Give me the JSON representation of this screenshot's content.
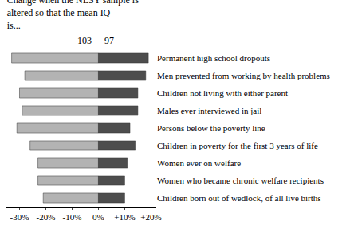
{
  "chart_data": {
    "type": "bar",
    "orientation": "horizontal",
    "title": "Change when the NLSY sample is altered so that the mean IQ is...",
    "categories": [
      "Permanent high school dropouts",
      "Men prevented from working by health problems",
      "Children not living with either parent",
      "Males ever interviewed in jail",
      "Persons below the poverty line",
      "Children in poverty for the first 3 years of life",
      "Women ever on welfare",
      "Women who became chronic welfare recipients",
      "Children born out of wedlock, of all live births"
    ],
    "series": [
      {
        "name": "103",
        "color": "#b3b3b3",
        "values": [
          -33,
          -28,
          -30,
          -29,
          -31,
          -26,
          -23,
          -23,
          -21
        ]
      },
      {
        "name": "97",
        "color": "#4d4d4d",
        "values": [
          19,
          18,
          15,
          15,
          12,
          14,
          11,
          10,
          10
        ]
      }
    ],
    "xlim": [
      -35,
      22
    ],
    "xticks": [
      {
        "value": -30,
        "label": "-30%"
      },
      {
        "value": -20,
        "label": "-20%"
      },
      {
        "value": -10,
        "label": "-10%"
      },
      {
        "value": 0,
        "label": "0%"
      },
      {
        "value": 10,
        "label": "+10%"
      },
      {
        "value": 20,
        "label": "+20%"
      }
    ],
    "stacked": false,
    "grid": false
  }
}
